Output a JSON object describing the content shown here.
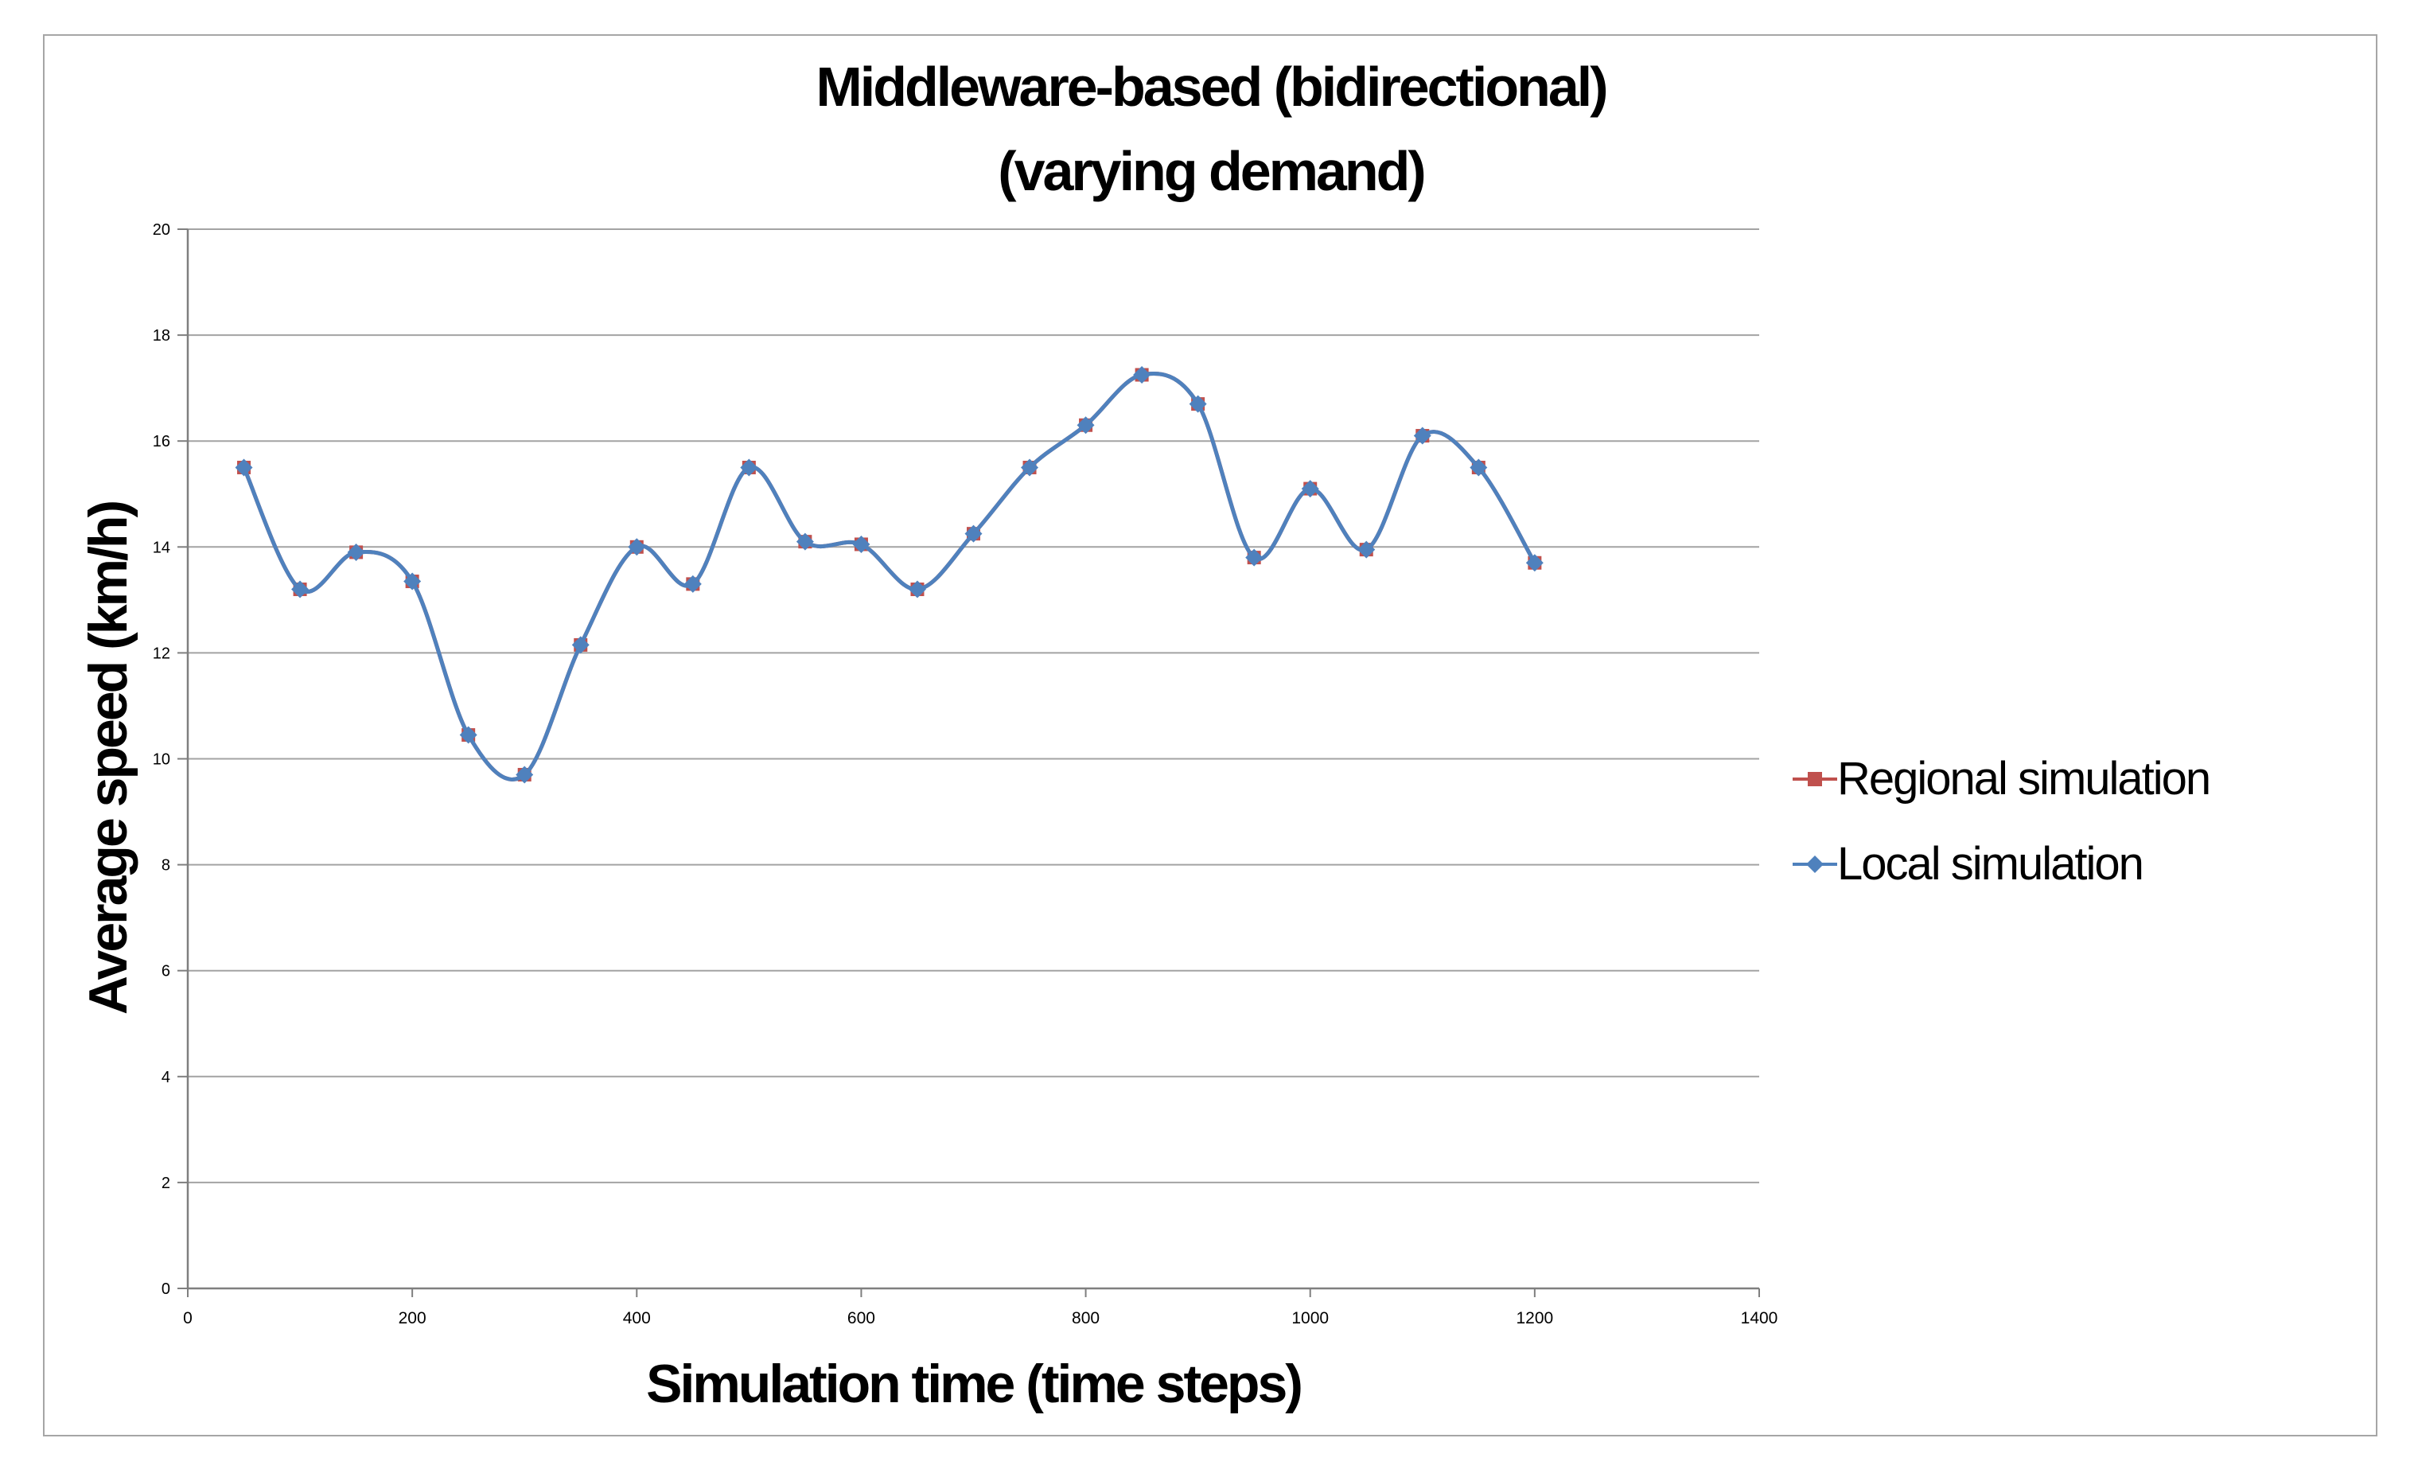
{
  "chart_data": {
    "type": "line",
    "title": "Middleware-based (bidirectional)",
    "subtitle": "(varying demand)",
    "xlabel": "Simulation time (time steps)",
    "ylabel": "Average speed (km/h)",
    "xlim": [
      0,
      1400
    ],
    "ylim": [
      0,
      20
    ],
    "x_ticks": [
      0,
      200,
      400,
      600,
      800,
      1000,
      1200,
      1400
    ],
    "y_ticks": [
      0,
      2,
      4,
      6,
      8,
      10,
      12,
      14,
      16,
      18,
      20
    ],
    "grid": true,
    "legend_position": "right",
    "smooth_lines": true,
    "x": [
      50,
      100,
      150,
      200,
      250,
      300,
      350,
      400,
      450,
      500,
      550,
      600,
      650,
      700,
      750,
      800,
      850,
      900,
      950,
      1000,
      1050,
      1100,
      1150,
      1200
    ],
    "series": [
      {
        "name": "Regional simulation",
        "color": "#C0504D",
        "marker": "square",
        "values": [
          15.5,
          13.2,
          13.9,
          13.35,
          10.45,
          9.7,
          12.15,
          14.0,
          13.3,
          15.5,
          14.1,
          14.05,
          13.2,
          14.25,
          15.5,
          16.3,
          17.25,
          16.7,
          13.8,
          15.1,
          13.95,
          16.1,
          15.5,
          13.7
        ]
      },
      {
        "name": "Local simulation",
        "color": "#4F81BD",
        "marker": "diamond",
        "values": [
          15.5,
          13.2,
          13.9,
          13.35,
          10.45,
          9.7,
          12.15,
          14.0,
          13.3,
          15.5,
          14.1,
          14.05,
          13.2,
          14.25,
          15.5,
          16.3,
          17.25,
          16.7,
          13.8,
          15.1,
          13.95,
          16.1,
          15.5,
          13.7
        ]
      }
    ]
  },
  "colors": {
    "axis": "#7F7F7F",
    "gridline": "#A3A3A3",
    "frame_border": "#A6A6A6",
    "text": "#000000",
    "background": "#FFFFFF"
  }
}
